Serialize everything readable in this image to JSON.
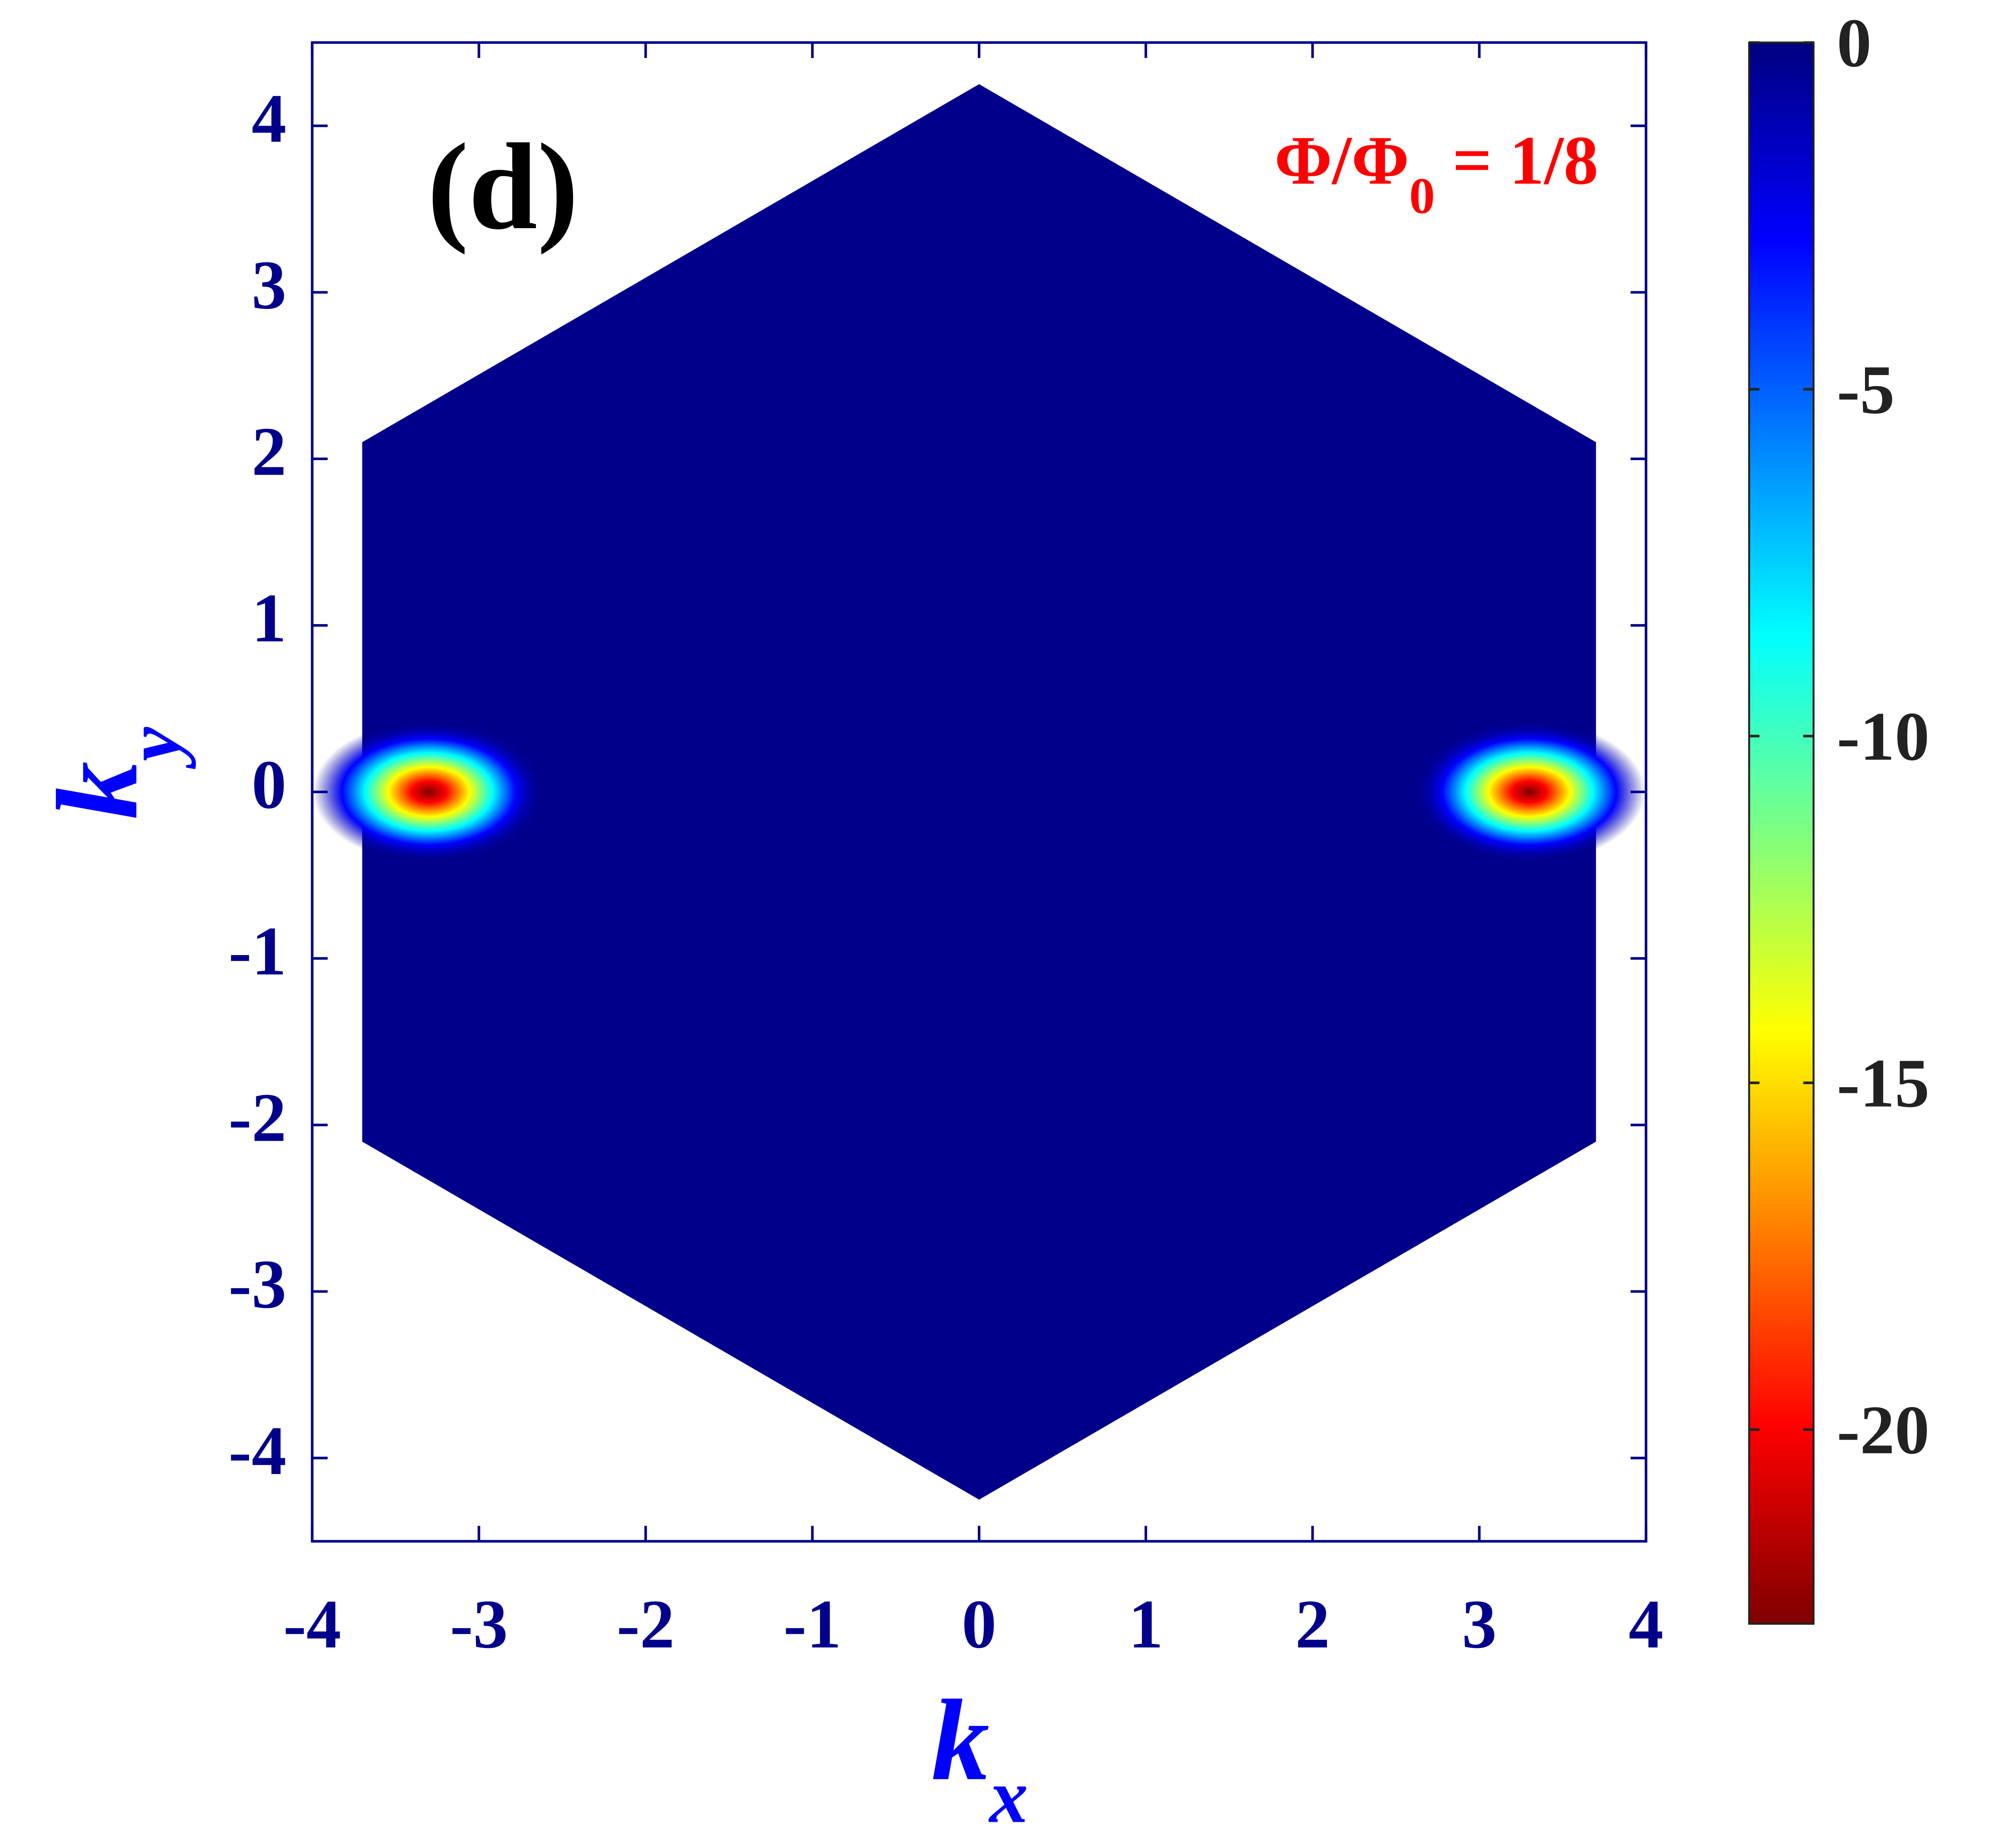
{
  "chart_data": {
    "type": "heatmap",
    "panel_label": "(d)",
    "annotation": [
      "Φ/Φ",
      "0",
      " = 1/8"
    ],
    "xlabel": [
      "k",
      "x"
    ],
    "ylabel": [
      "k",
      "y"
    ],
    "xlim": [
      -4,
      4
    ],
    "xticks": [
      -4,
      -3,
      -2,
      -1,
      0,
      1,
      2,
      3,
      4
    ],
    "ylim": [
      -4.5,
      4.5
    ],
    "yticks": [
      -4,
      -3,
      -2,
      -1,
      0,
      1,
      2,
      3,
      4
    ],
    "clim": [
      -22.8,
      0
    ],
    "cticks": [
      0,
      -5,
      -10,
      -15,
      -20
    ],
    "colormap": "jet",
    "region": {
      "x": [
        0,
        3.7,
        3.7,
        0,
        -3.7,
        -3.7
      ],
      "y": [
        4.25,
        2.1,
        -2.1,
        -4.25,
        -2.1,
        2.1
      ],
      "value": 0
    },
    "hotspots": [
      {
        "x": -3.3,
        "y": 0,
        "value": -22.8
      },
      {
        "x": 3.3,
        "y": 0,
        "value": -22.8
      }
    ]
  }
}
